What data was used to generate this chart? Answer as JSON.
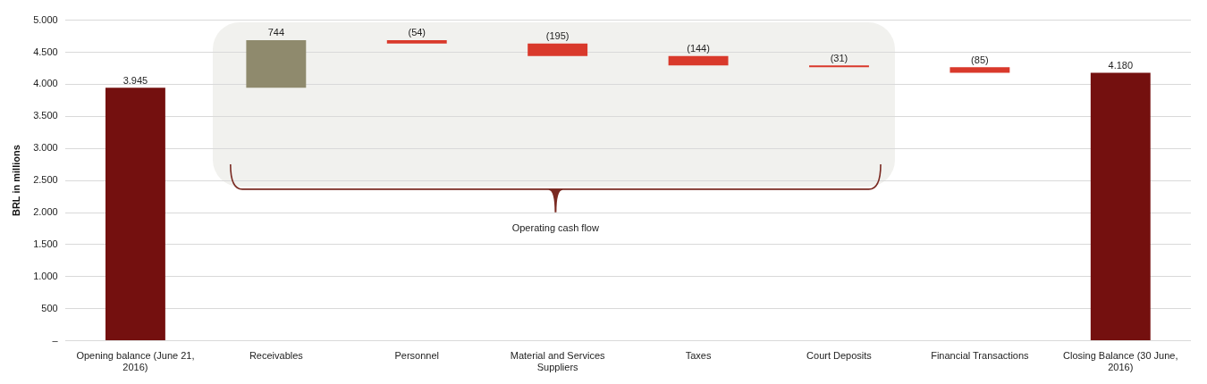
{
  "chart_data": {
    "type": "bar",
    "ylabel": "BRL in millions",
    "categories": [
      "Opening balance (June 21, 2016)",
      "Receivables",
      "Personnel",
      "Material and Services Suppliers",
      "Taxes",
      "Court Deposits",
      "Financial Transactions",
      "Closing Balance (30 June, 2016)"
    ],
    "values": [
      3945,
      744,
      -54,
      -195,
      -144,
      -31,
      -85,
      4180
    ],
    "base": [
      0,
      3945,
      4689,
      4635,
      4440,
      4296,
      4265,
      0
    ],
    "colors": [
      "#74100f",
      "#8f8a6d",
      "#d9392b",
      "#d9392b",
      "#d9392b",
      "#d9392b",
      "#d9392b",
      "#74100f"
    ],
    "value_labels": [
      "3.945",
      "744",
      "(54)",
      "(195)",
      "(144)",
      "(31)",
      "(85)",
      "4.180"
    ],
    "ylim": [
      0,
      5000
    ],
    "yticks": [
      {
        "value": 0,
        "label": "–"
      },
      500,
      {
        "value": 1000,
        "label": "1.000"
      },
      {
        "value": 1500,
        "label": "1.500"
      },
      {
        "value": 2000,
        "label": "2.000"
      },
      {
        "value": 2500,
        "label": "2.500"
      },
      {
        "value": 3000,
        "label": "3.000"
      },
      {
        "value": 3500,
        "label": "3.500"
      },
      {
        "value": 4000,
        "label": "4.000"
      },
      {
        "value": 4500,
        "label": "4.500"
      },
      {
        "value": 5000,
        "label": "5.000"
      }
    ],
    "grid": "y",
    "legend": false,
    "annotations": [
      "Operating cash flow"
    ]
  }
}
